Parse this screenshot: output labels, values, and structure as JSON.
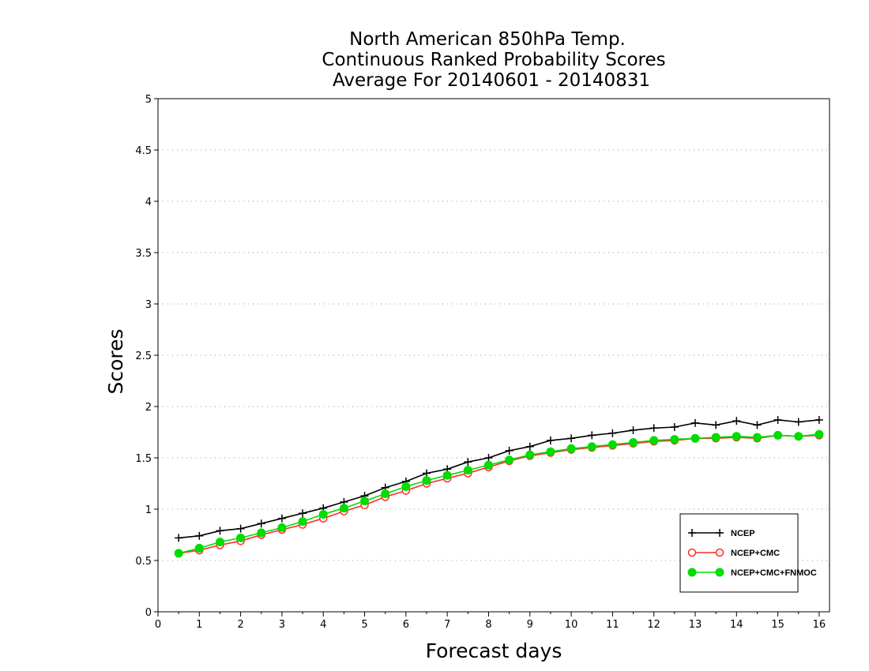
{
  "chart_data": {
    "type": "line",
    "title_lines": [
      "North American 850hPa Temp.",
      "Continuous Ranked Probability Scores",
      "Average For 20140601 - 20140831"
    ],
    "xlabel": "Forecast days",
    "ylabel": "Scores",
    "xlim": [
      0,
      16.25
    ],
    "ylim": [
      0,
      5
    ],
    "xticks": [
      0,
      1,
      2,
      3,
      4,
      5,
      6,
      7,
      8,
      9,
      10,
      11,
      12,
      13,
      14,
      15,
      16
    ],
    "xtick_labels": [
      "0",
      "1",
      "2",
      "3",
      "4",
      "5",
      "6",
      "7",
      "8",
      "9",
      "10",
      "11",
      "12",
      "13",
      "14",
      "15",
      "16"
    ],
    "yticks": [
      0,
      0.5,
      1,
      1.5,
      2,
      2.5,
      3,
      3.5,
      4,
      4.5,
      5
    ],
    "ytick_labels": [
      "0",
      "0.5",
      "1",
      "1.5",
      "2",
      "2.5",
      "3",
      "3.5",
      "4",
      "4.5",
      "5"
    ],
    "grid": "horizontal-dotted",
    "legend_position": "bottom-right",
    "x": [
      0.5,
      1,
      1.5,
      2,
      2.5,
      3,
      3.5,
      4,
      4.5,
      5,
      5.5,
      6,
      6.5,
      7,
      7.5,
      8,
      8.5,
      9,
      9.5,
      10,
      10.5,
      11,
      11.5,
      12,
      12.5,
      13,
      13.5,
      14,
      14.5,
      15,
      15.5,
      16
    ],
    "series": [
      {
        "name": "NCEP",
        "color": "#000000",
        "marker": "plus",
        "values": [
          0.72,
          0.74,
          0.79,
          0.81,
          0.86,
          0.91,
          0.96,
          1.01,
          1.07,
          1.13,
          1.21,
          1.27,
          1.35,
          1.39,
          1.46,
          1.5,
          1.57,
          1.61,
          1.67,
          1.69,
          1.72,
          1.74,
          1.77,
          1.79,
          1.8,
          1.84,
          1.82,
          1.86,
          1.82,
          1.87,
          1.85,
          1.87
        ]
      },
      {
        "name": "NCEP+CMC",
        "color": "#ff2a2a",
        "marker": "open-circle",
        "values": [
          0.57,
          0.6,
          0.65,
          0.69,
          0.75,
          0.8,
          0.85,
          0.91,
          0.98,
          1.04,
          1.12,
          1.18,
          1.25,
          1.3,
          1.35,
          1.41,
          1.47,
          1.52,
          1.55,
          1.58,
          1.6,
          1.62,
          1.64,
          1.66,
          1.67,
          1.69,
          1.69,
          1.7,
          1.69,
          1.72,
          1.71,
          1.72
        ]
      },
      {
        "name": "NCEP+CMC+FNMOC",
        "color": "#00dd00",
        "marker": "filled-circle",
        "values": [
          0.57,
          0.62,
          0.68,
          0.72,
          0.77,
          0.82,
          0.88,
          0.95,
          1.01,
          1.08,
          1.15,
          1.22,
          1.28,
          1.33,
          1.38,
          1.43,
          1.48,
          1.53,
          1.56,
          1.59,
          1.61,
          1.63,
          1.65,
          1.67,
          1.68,
          1.69,
          1.7,
          1.71,
          1.7,
          1.72,
          1.71,
          1.73
        ]
      }
    ]
  }
}
